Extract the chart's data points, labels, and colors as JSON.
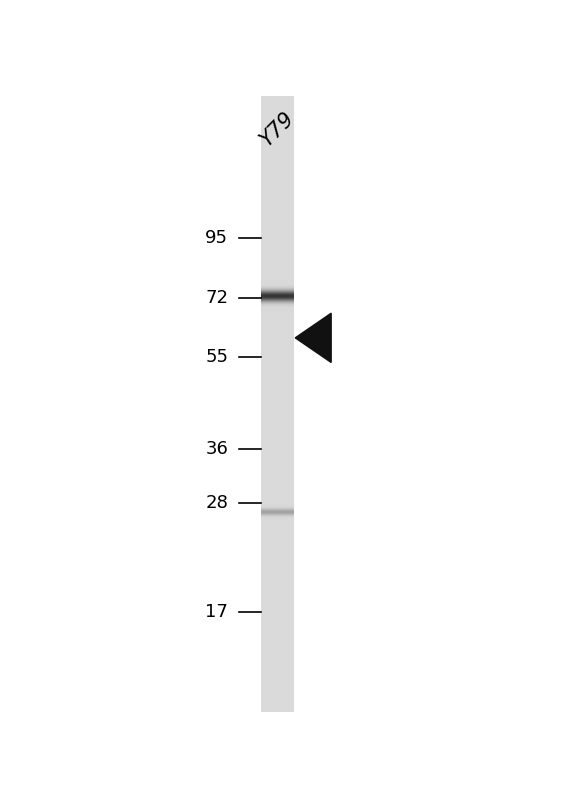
{
  "background_color": "#ffffff",
  "lane_label": "Y79",
  "lane_label_fontsize": 15,
  "lane_label_rotation": 45,
  "mw_markers": [
    95,
    72,
    55,
    36,
    28,
    17
  ],
  "mw_marker_fontsize": 13,
  "band_main_mw": 60,
  "band_faint_mw": 26,
  "arrow_mw": 60,
  "arrow_color": "#111111",
  "lane_gray": 0.855,
  "mw_min": 12,
  "mw_max": 130
}
